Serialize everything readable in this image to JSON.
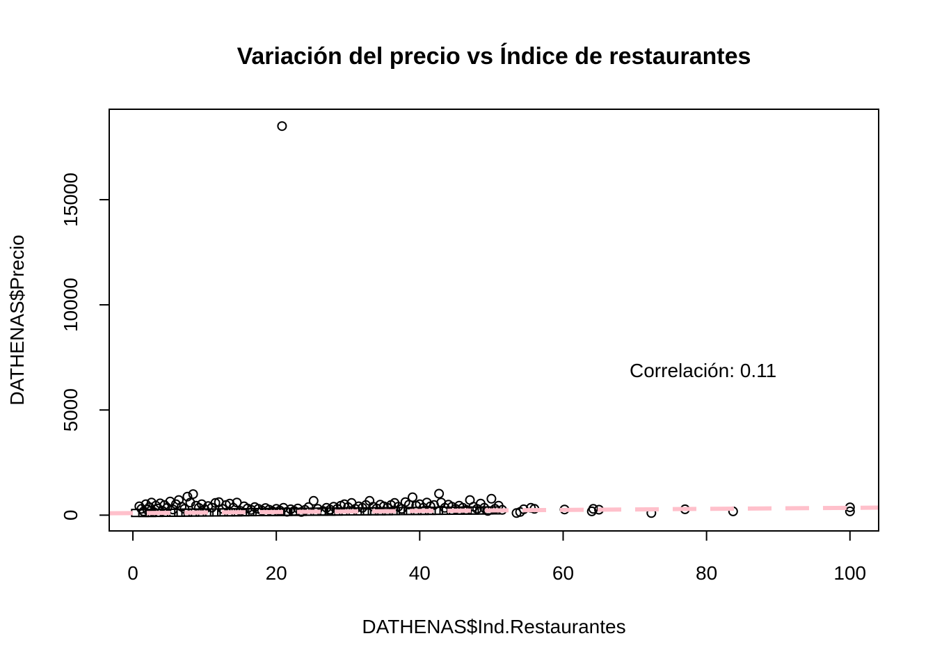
{
  "chart_data": {
    "type": "scatter",
    "title": "Variación del precio vs Índice de restaurantes",
    "xlabel": "DATHENAS$Ind.Restaurantes",
    "ylabel": "DATHENAS$Precio",
    "xlim": [
      -3.3,
      104
    ],
    "ylim": [
      -750,
      19300
    ],
    "xticks": [
      0,
      20,
      40,
      60,
      80,
      100
    ],
    "yticks": [
      0,
      5000,
      10000,
      15000
    ],
    "xtick_labels": [
      "0",
      "20",
      "40",
      "60",
      "80",
      "100"
    ],
    "ytick_labels": [
      "0",
      "5000",
      "10000",
      "15000"
    ],
    "grid": false,
    "annotation": {
      "text": "Correlación: 0.11",
      "x": 80,
      "y": 6900
    },
    "regression_line": {
      "intercept": 100,
      "slope": 2.5,
      "color": "#FFC0CB",
      "style": "dashed"
    },
    "point_color": "#000000",
    "points": [
      [
        20.8,
        18500
      ],
      [
        0.9,
        420
      ],
      [
        1.2,
        300
      ],
      [
        1.5,
        180
      ],
      [
        1.8,
        520
      ],
      [
        2.0,
        260
      ],
      [
        2.3,
        380
      ],
      [
        2.6,
        600
      ],
      [
        2.9,
        150
      ],
      [
        3.2,
        450
      ],
      [
        3.5,
        320
      ],
      [
        3.8,
        560
      ],
      [
        4.1,
        210
      ],
      [
        4.4,
        480
      ],
      [
        4.8,
        350
      ],
      [
        5.2,
        650
      ],
      [
        5.6,
        270
      ],
      [
        6.0,
        520
      ],
      [
        6.4,
        720
      ],
      [
        6.8,
        400
      ],
      [
        7.2,
        300
      ],
      [
        7.6,
        880
      ],
      [
        8.0,
        600
      ],
      [
        8.4,
        1000
      ],
      [
        8.8,
        450
      ],
      [
        9.2,
        350
      ],
      [
        9.6,
        520
      ],
      [
        10.0,
        280
      ],
      [
        10.5,
        430
      ],
      [
        11.0,
        360
      ],
      [
        11.5,
        580
      ],
      [
        12.0,
        620
      ],
      [
        12.5,
        300
      ],
      [
        13.0,
        480
      ],
      [
        13.5,
        550
      ],
      [
        14.0,
        350
      ],
      [
        14.5,
        600
      ],
      [
        15.0,
        200
      ],
      [
        15.5,
        420
      ],
      [
        16.0,
        320
      ],
      [
        16.5,
        250
      ],
      [
        17.0,
        380
      ],
      [
        17.5,
        300
      ],
      [
        18.0,
        220
      ],
      [
        18.5,
        340
      ],
      [
        19.0,
        260
      ],
      [
        19.5,
        180
      ],
      [
        20.0,
        300
      ],
      [
        20.5,
        220
      ],
      [
        21.0,
        350
      ],
      [
        21.5,
        160
      ],
      [
        22.0,
        280
      ],
      [
        22.5,
        200
      ],
      [
        23.0,
        320
      ],
      [
        23.5,
        150
      ],
      [
        24.0,
        250
      ],
      [
        24.5,
        380
      ],
      [
        25.2,
        680
      ],
      [
        25.8,
        300
      ],
      [
        26.5,
        200
      ],
      [
        27.0,
        350
      ],
      [
        27.5,
        260
      ],
      [
        28.0,
        400
      ],
      [
        28.5,
        300
      ],
      [
        29.0,
        450
      ],
      [
        29.5,
        520
      ],
      [
        30.0,
        380
      ],
      [
        30.5,
        580
      ],
      [
        31.0,
        300
      ],
      [
        31.5,
        420
      ],
      [
        32.0,
        350
      ],
      [
        32.5,
        480
      ],
      [
        33.0,
        680
      ],
      [
        33.5,
        400
      ],
      [
        34.0,
        320
      ],
      [
        34.5,
        500
      ],
      [
        35.0,
        420
      ],
      [
        35.5,
        350
      ],
      [
        36.0,
        480
      ],
      [
        36.5,
        580
      ],
      [
        37.0,
        400
      ],
      [
        37.5,
        300
      ],
      [
        38.0,
        620
      ],
      [
        38.5,
        500
      ],
      [
        39.0,
        850
      ],
      [
        39.5,
        450
      ],
      [
        40.0,
        520
      ],
      [
        40.5,
        350
      ],
      [
        41.0,
        600
      ],
      [
        41.5,
        420
      ],
      [
        42.0,
        480
      ],
      [
        42.7,
        1020
      ],
      [
        43.0,
        600
      ],
      [
        43.5,
        350
      ],
      [
        44.0,
        500
      ],
      [
        44.5,
        400
      ],
      [
        45.0,
        300
      ],
      [
        45.5,
        450
      ],
      [
        46.0,
        350
      ],
      [
        46.5,
        250
      ],
      [
        47.0,
        720
      ],
      [
        47.5,
        400
      ],
      [
        48.0,
        300
      ],
      [
        48.5,
        550
      ],
      [
        49.0,
        350
      ],
      [
        49.5,
        200
      ],
      [
        50.0,
        780
      ],
      [
        50.5,
        300
      ],
      [
        51.0,
        450
      ],
      [
        51.5,
        250
      ],
      [
        53.5,
        100
      ],
      [
        54.0,
        150
      ],
      [
        54.5,
        280
      ],
      [
        55.5,
        350
      ],
      [
        56.0,
        300
      ],
      [
        60.2,
        270
      ],
      [
        64.0,
        180
      ],
      [
        64.2,
        300
      ],
      [
        65.0,
        260
      ],
      [
        72.3,
        100
      ],
      [
        77.0,
        280
      ],
      [
        83.7,
        180
      ],
      [
        100.0,
        180
      ],
      [
        100.0,
        370
      ]
    ]
  }
}
